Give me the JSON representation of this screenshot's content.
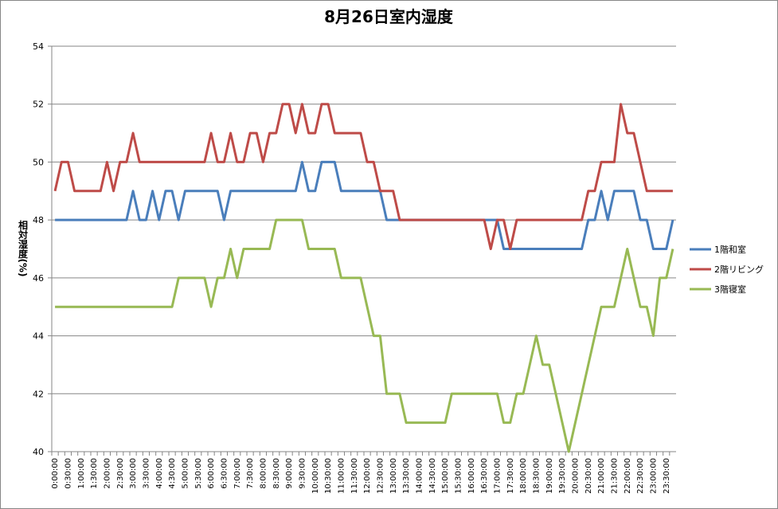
{
  "chart_data": {
    "type": "line",
    "title": "8月26日室内湿度",
    "y_label": "相対湿度(%)",
    "categories": [
      "0:00:00",
      null,
      "0:30:00",
      null,
      "1:00:00",
      null,
      "1:30:00",
      null,
      "2:00:00",
      null,
      "2:30:00",
      null,
      "3:00:00",
      null,
      "3:30:00",
      null,
      "4:00:00",
      null,
      "4:30:00",
      null,
      "5:00:00",
      null,
      "5:30:00",
      null,
      "6:00:00",
      null,
      "6:30:00",
      null,
      "7:00:00",
      null,
      "7:30:00",
      null,
      "8:00:00",
      null,
      "8:30:00",
      null,
      "9:00:00",
      null,
      "9:30:00",
      null,
      "10:00:00",
      null,
      "10:30:00",
      null,
      "11:00:00",
      null,
      "11:30:00",
      null,
      "12:00:00",
      null,
      "12:30:00",
      null,
      "13:00:00",
      null,
      "13:30:00",
      null,
      "14:00:00",
      null,
      "14:30:00",
      null,
      "15:00:00",
      null,
      "15:30:00",
      null,
      "16:00:00",
      null,
      "16:30:00",
      null,
      "17:00:00",
      null,
      "17:30:00",
      null,
      "18:00:00",
      null,
      "18:30:00",
      null,
      "19:00:00",
      null,
      "19:30:00",
      null,
      "20:00:00",
      null,
      "20:30:00",
      null,
      "21:00:00",
      null,
      "21:30:00",
      null,
      "22:00:00",
      null,
      "22:30:00",
      null,
      "23:00:00",
      null,
      "23:30:00",
      null
    ],
    "series": [
      {
        "name": "1階和室",
        "color": "#4a7ebb",
        "values": [
          48,
          48,
          48,
          48,
          48,
          48,
          48,
          48,
          48,
          48,
          48,
          48,
          49,
          48,
          48,
          49,
          48,
          49,
          49,
          48,
          49,
          49,
          49,
          49,
          49,
          49,
          48,
          49,
          49,
          49,
          49,
          49,
          49,
          49,
          49,
          49,
          49,
          49,
          50,
          49,
          49,
          50,
          50,
          50,
          49,
          49,
          49,
          49,
          49,
          49,
          49,
          48,
          48,
          48,
          48,
          48,
          48,
          48,
          48,
          48,
          48,
          48,
          48,
          48,
          48,
          48,
          48,
          48,
          48,
          47,
          47,
          47,
          47,
          47,
          47,
          47,
          47,
          47,
          47,
          47,
          47,
          47,
          48,
          48,
          49,
          48,
          49,
          49,
          49,
          49,
          48,
          48,
          47,
          47,
          47,
          48
        ]
      },
      {
        "name": "2階リビング",
        "color": "#be4b48",
        "values": [
          49,
          50,
          50,
          49,
          49,
          49,
          49,
          49,
          50,
          49,
          50,
          50,
          51,
          50,
          50,
          50,
          50,
          50,
          50,
          50,
          50,
          50,
          50,
          50,
          51,
          50,
          50,
          51,
          50,
          50,
          51,
          51,
          50,
          51,
          51,
          52,
          52,
          51,
          52,
          51,
          51,
          52,
          52,
          51,
          51,
          51,
          51,
          51,
          50,
          50,
          49,
          49,
          49,
          48,
          48,
          48,
          48,
          48,
          48,
          48,
          48,
          48,
          48,
          48,
          48,
          48,
          48,
          47,
          48,
          48,
          47,
          48,
          48,
          48,
          48,
          48,
          48,
          48,
          48,
          48,
          48,
          48,
          49,
          49,
          50,
          50,
          50,
          52,
          51,
          51,
          50,
          49,
          49,
          49,
          49,
          49
        ]
      },
      {
        "name": "3階寝室",
        "color": "#98b954",
        "values": [
          45,
          45,
          45,
          45,
          45,
          45,
          45,
          45,
          45,
          45,
          45,
          45,
          45,
          45,
          45,
          45,
          45,
          45,
          45,
          46,
          46,
          46,
          46,
          46,
          45,
          46,
          46,
          47,
          46,
          47,
          47,
          47,
          47,
          47,
          48,
          48,
          48,
          48,
          48,
          47,
          47,
          47,
          47,
          47,
          46,
          46,
          46,
          46,
          45,
          44,
          44,
          42,
          42,
          42,
          41,
          41,
          41,
          41,
          41,
          41,
          41,
          42,
          42,
          42,
          42,
          42,
          42,
          42,
          42,
          41,
          41,
          42,
          42,
          43,
          44,
          43,
          43,
          42,
          41,
          40,
          41,
          42,
          43,
          44,
          45,
          45,
          45,
          46,
          47,
          46,
          45,
          45,
          44,
          46,
          46,
          47
        ]
      }
    ],
    "ylim": [
      40,
      54
    ],
    "yticks": [
      40,
      42,
      44,
      46,
      48,
      50,
      52,
      54
    ],
    "grid": true,
    "legend": "right"
  }
}
